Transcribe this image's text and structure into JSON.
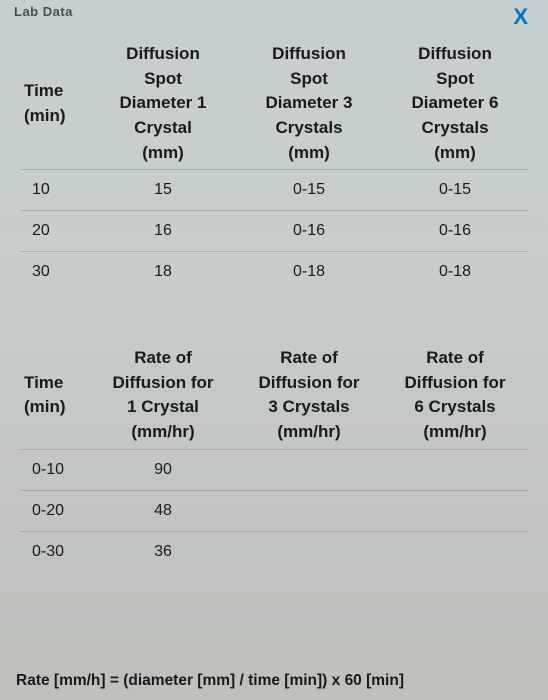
{
  "header": {
    "title": "Lab Data",
    "close_label": "X"
  },
  "table1": {
    "columns": {
      "time_line1": "Time",
      "time_line2": "(min)",
      "d1_l1": "Diffusion",
      "d1_l2": "Spot",
      "d1_l3": "Diameter 1",
      "d1_l4": "Crystal",
      "d1_l5": "(mm)",
      "d3_l1": "Diffusion",
      "d3_l2": "Spot",
      "d3_l3": "Diameter 3",
      "d3_l4": "Crystals",
      "d3_l5": "(mm)",
      "d6_l1": "Diffusion",
      "d6_l2": "Spot",
      "d6_l3": "Diameter 6",
      "d6_l4": "Crystals",
      "d6_l5": "(mm)"
    },
    "rows": [
      {
        "time": "10",
        "d1": "15",
        "d3": "0-15",
        "d6": "0-15"
      },
      {
        "time": "20",
        "d1": "16",
        "d3": "0-16",
        "d6": "0-16"
      },
      {
        "time": "30",
        "d1": "18",
        "d3": "0-18",
        "d6": "0-18"
      }
    ]
  },
  "table2": {
    "columns": {
      "time_line1": "Time",
      "time_line2": "(min)",
      "r1_l1": "Rate of",
      "r1_l2": "Diffusion for",
      "r1_l3": "1 Crystal",
      "r1_l4": "(mm/hr)",
      "r3_l1": "Rate of",
      "r3_l2": "Diffusion for",
      "r3_l3": "3 Crystals",
      "r3_l4": "(mm/hr)",
      "r6_l1": "Rate of",
      "r6_l2": "Diffusion for",
      "r6_l3": "6 Crystals",
      "r6_l4": "(mm/hr)"
    },
    "rows": [
      {
        "time": "0-10",
        "r1": "90",
        "r3": "",
        "r6": ""
      },
      {
        "time": "0-20",
        "r1": "48",
        "r3": "",
        "r6": ""
      },
      {
        "time": "0-30",
        "r1": "36",
        "r3": "",
        "r6": ""
      }
    ]
  },
  "formula": "Rate [mm/h] = (diameter [mm] / time [min]) x 60 [min]",
  "colors": {
    "background_top": "#c5cfd0",
    "background_bottom": "#bdc0bb",
    "text": "#1a1a1a",
    "close_x": "#0077c2",
    "row_border": "rgba(80,85,85,0.25)"
  }
}
